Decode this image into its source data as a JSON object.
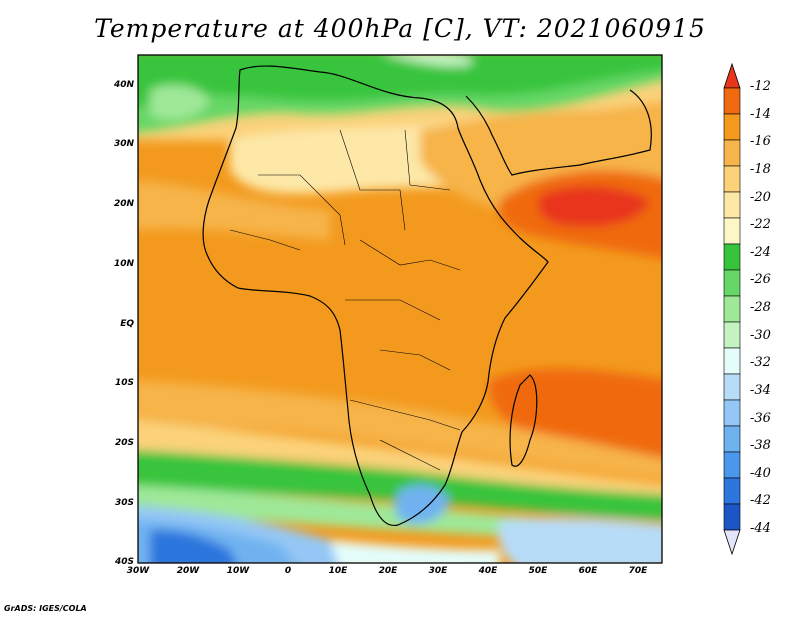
{
  "title": "Temperature at 400hPa [C], VT: 2021060915",
  "credit": "GrADS: IGES/COLA",
  "map": {
    "projection": "latlon",
    "lon_range": [
      -30,
      75
    ],
    "lat_range": [
      -40,
      45
    ],
    "lat_ticks": [
      "40N",
      "30N",
      "20N",
      "10N",
      "EQ",
      "10S",
      "20S",
      "30S",
      "40S"
    ],
    "lon_ticks": [
      "30W",
      "20W",
      "10W",
      "0",
      "10E",
      "20E",
      "30E",
      "40E",
      "50E",
      "60E",
      "70E"
    ],
    "color_levels": [
      "-12",
      "-14",
      "-16",
      "-18",
      "-20",
      "-22",
      "-24",
      "-26",
      "-28",
      "-30",
      "-32",
      "-34",
      "-36",
      "-38",
      "-40",
      "-42",
      "-44"
    ],
    "colors": [
      "#e8361a",
      "#f06a10",
      "#f39a1e",
      "#f6b44a",
      "#fbd27a",
      "#fde8a8",
      "#fdf7c8",
      "#37c43c",
      "#66d766",
      "#9fe898",
      "#c4f2c0",
      "#e4fdfb",
      "#b7dcf8",
      "#94c7f5",
      "#6fb2f0",
      "#4a97eb",
      "#2c76dd",
      "#1b55c6",
      "#0f2e9e"
    ]
  }
}
